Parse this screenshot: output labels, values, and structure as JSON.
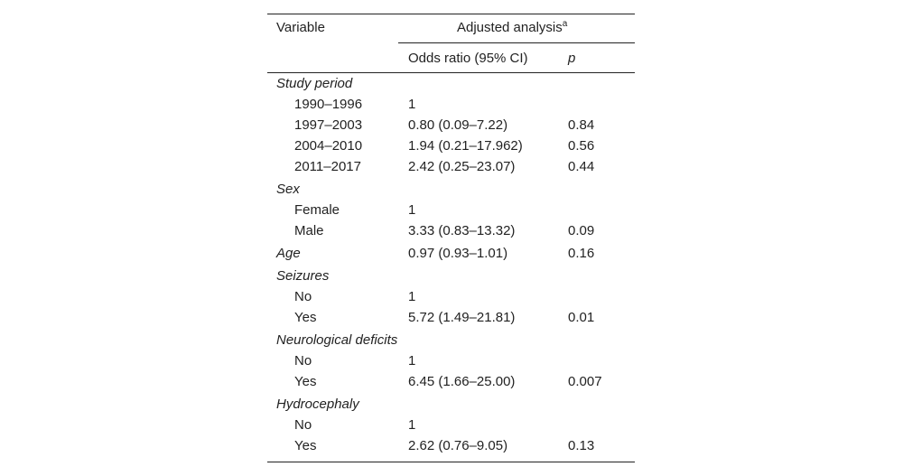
{
  "header": {
    "variable": "Variable",
    "adjusted": "Adjusted analysis",
    "adjusted_note": "a",
    "odds_ratio": "Odds ratio (95% CI)",
    "p": "p"
  },
  "groups": [
    {
      "label": "Study period",
      "rows": [
        {
          "label": "1990–1996",
          "or": "1"
        },
        {
          "label": "1997–2003",
          "or": "0.80 (0.09–7.22)",
          "p": "0.84"
        },
        {
          "label": "2004–2010",
          "or": "1.94 (0.21–17.962)",
          "p": "0.56"
        },
        {
          "label": "2011–2017",
          "or": "2.42 (0.25–23.07)",
          "p": "0.44"
        }
      ]
    },
    {
      "label": "Sex",
      "rows": [
        {
          "label": "Female",
          "or": "1"
        },
        {
          "label": "Male",
          "or": "3.33 (0.83–13.32)",
          "p": "0.09"
        }
      ]
    },
    {
      "label": "Age",
      "or": "0.97 (0.93–1.01)",
      "p": "0.16"
    },
    {
      "label": "Seizures",
      "rows": [
        {
          "label": "No",
          "or": "1"
        },
        {
          "label": "Yes",
          "or": "5.72 (1.49–21.81)",
          "p": "0.01"
        }
      ]
    },
    {
      "label": "Neurological deficits",
      "rows": [
        {
          "label": "No",
          "or": "1"
        },
        {
          "label": "Yes",
          "or": "6.45 (1.66–25.00)",
          "p": "0.007"
        }
      ]
    },
    {
      "label": "Hydrocephaly",
      "rows": [
        {
          "label": "No",
          "or": "1"
        },
        {
          "label": "Yes",
          "or": "2.62 (0.76–9.05)",
          "p": "0.13"
        }
      ]
    }
  ]
}
